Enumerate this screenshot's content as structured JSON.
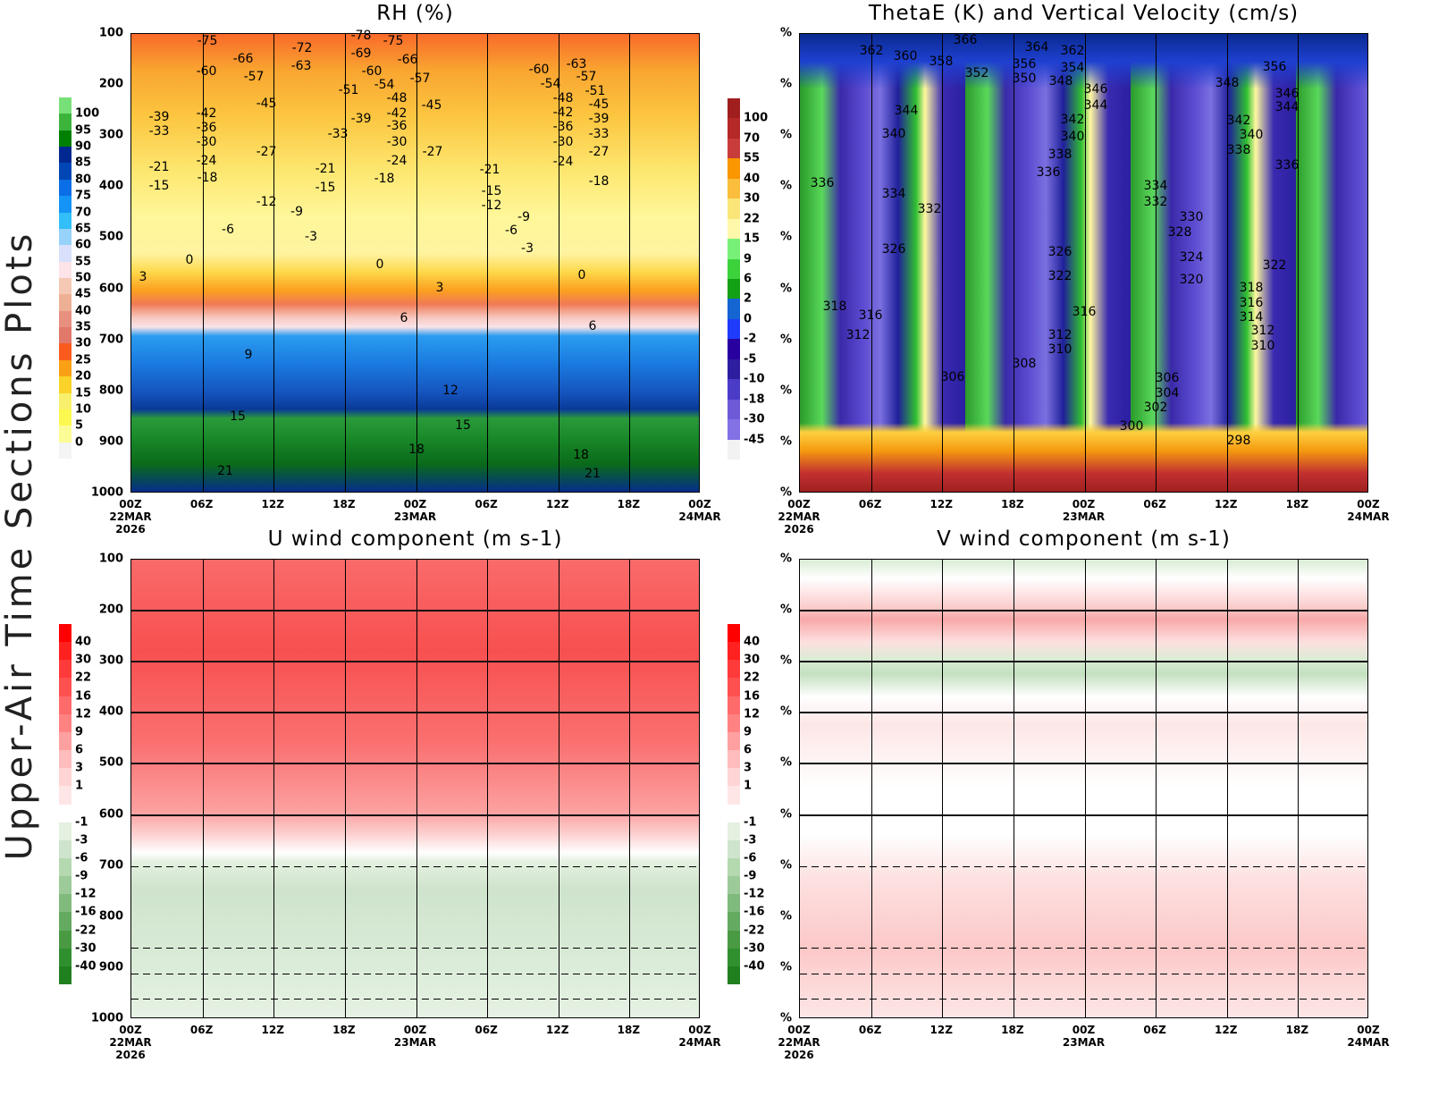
{
  "figure_title": "Upper-Air Time Sections Plots",
  "chart_data": [
    {
      "type": "heatmap",
      "title": "RH (%)",
      "y_ticks": [
        "100",
        "200",
        "300",
        "400",
        "500",
        "600",
        "700",
        "800",
        "900",
        "1000"
      ],
      "x_ticks": [
        "00Z",
        "06Z",
        "12Z",
        "18Z",
        "00Z",
        "06Z",
        "12Z",
        "18Z",
        "00Z"
      ],
      "x_dates": {
        "0": "22MAR\n2026",
        "4": "23MAR",
        "8": "24MAR"
      },
      "colorbar_labels": [
        "100",
        "95",
        "90",
        "85",
        "80",
        "75",
        "70",
        "65",
        "60",
        "55",
        "50",
        "45",
        "40",
        "35",
        "30",
        "25",
        "20",
        "15",
        "10",
        "5",
        "0"
      ],
      "colorbar_colors": [
        "#78e078",
        "#3cb43c",
        "#008000",
        "#002890",
        "#0046b4",
        "#0a6ee6",
        "#1494f6",
        "#32bef8",
        "#96d2fa",
        "#d8e0fc",
        "#fce4e8",
        "#f5c8b4",
        "#eeb094",
        "#e89080",
        "#e2786a",
        "#fa5a1e",
        "#faa014",
        "#fad228",
        "#f8f06c",
        "#fcf850",
        "#fcfc96",
        "#f4f4f4"
      ],
      "contour_labels": [
        "-75",
        "-72",
        "-78",
        "-75",
        "-66",
        "-63",
        "-69",
        "-66",
        "-60",
        "-57",
        "-60",
        "-57",
        "-54",
        "-51",
        "-48",
        "-45",
        "-45",
        "-42",
        "-39",
        "-42",
        "-39",
        "-36",
        "-33",
        "-36",
        "-33",
        "-30",
        "-30",
        "-27",
        "-27",
        "-24",
        "-24",
        "-21",
        "-21",
        "-18",
        "-15",
        "-15",
        "-18",
        "-21",
        "-15",
        "-12",
        "-12",
        "-9",
        "-6",
        "-3",
        "-9",
        "-6",
        "-3",
        "0",
        "0",
        "3",
        "3",
        "6",
        "6",
        "9",
        "12",
        "15",
        "15",
        "18",
        "18",
        "21",
        "21",
        "0",
        "-60",
        "-63",
        "-54",
        "-57",
        "-51",
        "-48",
        "-45",
        "-42",
        "-39",
        "-36",
        "-33",
        "-30",
        "-27",
        "-24",
        "-18"
      ]
    },
    {
      "type": "heatmap",
      "title": "ThetaE (K) and Vertical Velocity (cm/s)",
      "y_ticks": [
        "%",
        "%",
        "%",
        "%",
        "%",
        "%",
        "%",
        "%",
        "%",
        "%"
      ],
      "x_ticks": [
        "00Z",
        "06Z",
        "12Z",
        "18Z",
        "00Z",
        "06Z",
        "12Z",
        "18Z",
        "00Z"
      ],
      "x_dates": {
        "0": "22MAR\n2026",
        "4": "23MAR",
        "8": "24MAR"
      },
      "colorbar_labels": [
        "100",
        "70",
        "55",
        "40",
        "30",
        "22",
        "15",
        "9",
        "6",
        "2",
        "0",
        "-2",
        "-5",
        "-10",
        "-18",
        "-30",
        "-45"
      ],
      "colorbar_colors": [
        "#a01e1e",
        "#b42828",
        "#c83c3c",
        "#fa9600",
        "#fabe3c",
        "#fae678",
        "#fff8aa",
        "#78f078",
        "#3cd23c",
        "#14a014",
        "#1464d2",
        "#1e3cfa",
        "#2800a0",
        "#2d1ea0",
        "#4b3cc8",
        "#6e5ad7",
        "#8272e6",
        "#f2f2f2"
      ],
      "contour_labels": [
        "366",
        "362",
        "360",
        "358",
        "364",
        "362",
        "352",
        "356",
        "354",
        "350",
        "348",
        "348",
        "356",
        "346",
        "346",
        "344",
        "344",
        "344",
        "342",
        "342",
        "340",
        "340",
        "340",
        "338",
        "338",
        "336",
        "336",
        "336",
        "334",
        "334",
        "332",
        "332",
        "330",
        "328",
        "326",
        "326",
        "324",
        "322",
        "322",
        "320",
        "318",
        "318",
        "316",
        "316",
        "316",
        "314",
        "312",
        "312",
        "312",
        "310",
        "310",
        "308",
        "306",
        "306",
        "304",
        "302",
        "300",
        "298"
      ]
    },
    {
      "type": "heatmap",
      "title": "U wind component (m s-1)",
      "y_ticks": [
        "100",
        "200",
        "300",
        "400",
        "500",
        "600",
        "700",
        "800",
        "900",
        "1000"
      ],
      "x_ticks": [
        "00Z",
        "06Z",
        "12Z",
        "18Z",
        "00Z",
        "06Z",
        "12Z",
        "18Z",
        "00Z"
      ],
      "x_dates": {
        "0": "22MAR\n2026",
        "4": "23MAR",
        "8": "24MAR"
      },
      "colorbar_labels": [
        "40",
        "30",
        "22",
        "16",
        "12",
        "9",
        "6",
        "3",
        "1",
        "-1",
        "-3",
        "-6",
        "-9",
        "-12",
        "-16",
        "-22",
        "-30",
        "-40"
      ],
      "colorbar_colors": [
        "#ff0000",
        "#ff2020",
        "#ff3a3a",
        "#ff5050",
        "#ff6a6a",
        "#ff8282",
        "#ffa0a0",
        "#ffbcbc",
        "#ffd4d4",
        "#ffe6e6",
        "#ffffff",
        "#e4f0e0",
        "#cfe4cc",
        "#b4d8b0",
        "#9cca98",
        "#80ba7c",
        "#64aa60",
        "#4a9a44",
        "#309030",
        "#208020"
      ],
      "contour_labels": []
    },
    {
      "type": "heatmap",
      "title": "V wind component (m s-1)",
      "y_ticks": [
        "%",
        "%",
        "%",
        "%",
        "%",
        "%",
        "%",
        "%",
        "%",
        "%"
      ],
      "x_ticks": [
        "00Z",
        "06Z",
        "12Z",
        "18Z",
        "00Z",
        "06Z",
        "12Z",
        "18Z",
        "00Z"
      ],
      "x_dates": {
        "0": "22MAR\n2026",
        "4": "23MAR",
        "8": "24MAR"
      },
      "colorbar_labels": [
        "40",
        "30",
        "22",
        "16",
        "12",
        "9",
        "6",
        "3",
        "1",
        "-1",
        "-3",
        "-6",
        "-9",
        "-12",
        "-16",
        "-22",
        "-30",
        "-40"
      ],
      "colorbar_colors": [
        "#ff0000",
        "#ff2020",
        "#ff3a3a",
        "#ff5050",
        "#ff6a6a",
        "#ff8282",
        "#ffa0a0",
        "#ffbcbc",
        "#ffd4d4",
        "#ffe6e6",
        "#ffffff",
        "#e4f0e0",
        "#cfe4cc",
        "#b4d8b0",
        "#9cca98",
        "#80ba7c",
        "#64aa60",
        "#4a9a44",
        "#309030",
        "#208020"
      ],
      "contour_labels": []
    }
  ]
}
